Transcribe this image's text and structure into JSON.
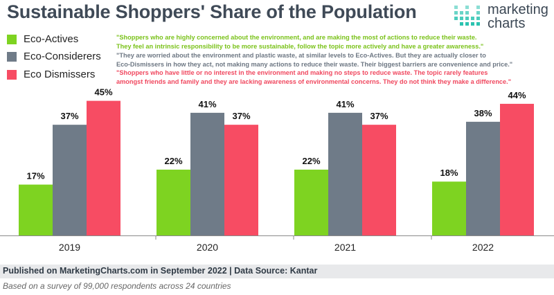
{
  "header": {
    "title": "Sustainable Shoppers' Share of the Population"
  },
  "logo": {
    "line1": "marketing",
    "line2": "charts"
  },
  "descriptions": [
    {
      "line1": "\"Shoppers who are highly concerned about the environment, and are making the most of actions to reduce their waste.",
      "line2": "They feel an intrinsic responsibility to be more sustainable, follow the topic more actively and have a greater awareness.\""
    },
    {
      "line1": "\"They are worried about the environment and plastic waste, at similar levels to Eco-Actives. But they are actually closer to",
      "line2": "Eco-Dismissers in how they act, not making many actions to reduce their waste. Their biggest barriers are convenience and price.\""
    },
    {
      "line1": "\"Shoppers who have little or no interest in the environment and making no steps to reduce waste. The topic rarely features",
      "line2": "amongst friends and family and they are lacking awareness of environmental concerns. They do not think they make a difference.\""
    }
  ],
  "chart_data": {
    "type": "bar",
    "title": "Sustainable Shoppers' Share of the Population",
    "categories": [
      "2019",
      "2020",
      "2021",
      "2022"
    ],
    "series": [
      {
        "name": "Eco-Actives",
        "values": [
          17,
          22,
          22,
          18
        ],
        "color": "#7ed321",
        "labels": [
          "17%",
          "22%",
          "22%",
          "18%"
        ]
      },
      {
        "name": "Eco-Considerers",
        "values": [
          37,
          41,
          41,
          38
        ],
        "color": "#6f7b88",
        "labels": [
          "37%",
          "41%",
          "41%",
          "38%"
        ]
      },
      {
        "name": "Eco Dismissers",
        "values": [
          45,
          37,
          37,
          44
        ],
        "color": "#f74c63",
        "labels": [
          "45%",
          "37%",
          "37%",
          "44%"
        ]
      }
    ],
    "ylim": [
      0,
      50
    ],
    "grid": false,
    "legend": "top-left"
  },
  "footer": {
    "source": "Published on MarketingCharts.com in September 2022 | Data Source: Kantar",
    "note": "Based on a survey of 99,000 respondents across 24 countries"
  },
  "colors": {
    "eco_actives": "#7ed321",
    "eco_considerers": "#6f7b88",
    "eco_dismissers": "#f74c63",
    "title": "#3f4a57",
    "logo_accent": "#2bc3b0"
  }
}
